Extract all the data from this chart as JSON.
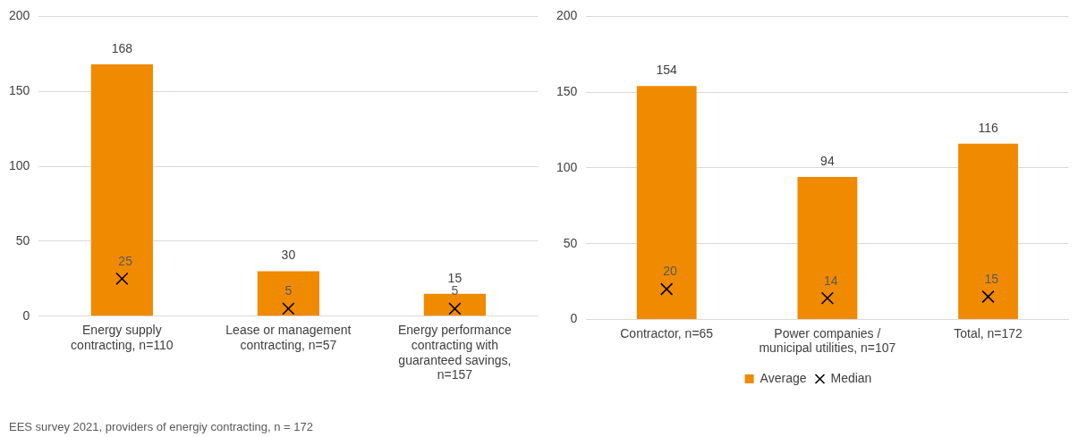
{
  "chart_data": [
    {
      "type": "bar",
      "categories": [
        "Energy supply contracting, n=110",
        "Lease or management contracting, n=57",
        "Energy performance contracting with guaranteed savings, n=157"
      ],
      "series": [
        {
          "color": "#f08a00",
          "values": [
            168,
            30,
            15
          ]
        },
        {
          "type": "scatter",
          "color": "#000000",
          "marker": "cross",
          "values": [
            25,
            5,
            5
          ]
        }
      ],
      "ylim": [
        0,
        200
      ],
      "yticks": [
        0,
        50,
        100,
        150,
        200
      ],
      "grid": "y",
      "legend": false,
      "data_labels": true,
      "annotations": [
        "EES survey 2021, providers of energiy contracting, n = 172"
      ]
    },
    {
      "type": "bar",
      "categories": [
        "Contractor, n=65",
        "Power companies / municipal utilities, n=107",
        "Total, n=172"
      ],
      "series": [
        {
          "name": "Average",
          "color": "#f08a00",
          "values": [
            154,
            94,
            116
          ]
        },
        {
          "type": "scatter",
          "name": "Median",
          "color": "#000000",
          "marker": "cross",
          "values": [
            20,
            14,
            15
          ]
        }
      ],
      "ylim": [
        0,
        200
      ],
      "yticks": [
        0,
        50,
        100,
        150,
        200
      ],
      "grid": "y",
      "legend": "bottom",
      "data_labels": true
    }
  ]
}
